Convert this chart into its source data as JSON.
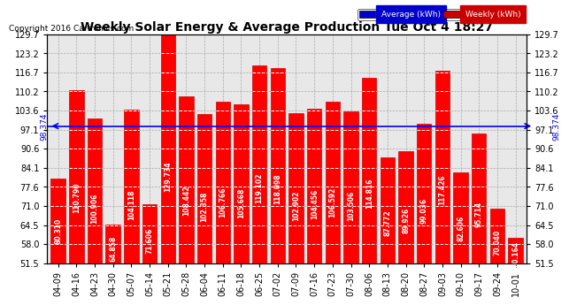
{
  "title": "Weekly Solar Energy & Average Production Tue Oct 4 18:27",
  "copyright": "Copyright 2016 Cartronics.com",
  "average_value": 98.374,
  "average_label": "98.374",
  "categories": [
    "04-09",
    "04-16",
    "04-23",
    "04-30",
    "05-07",
    "05-14",
    "05-21",
    "05-28",
    "06-04",
    "06-11",
    "06-18",
    "06-25",
    "07-02",
    "07-09",
    "07-16",
    "07-23",
    "07-30",
    "08-06",
    "08-13",
    "08-20",
    "08-27",
    "09-03",
    "09-10",
    "09-17",
    "09-24",
    "10-01"
  ],
  "values": [
    80.31,
    110.79,
    100.906,
    64.858,
    104.118,
    71.606,
    129.734,
    108.442,
    102.358,
    106.766,
    105.668,
    119.102,
    118.098,
    102.902,
    104.456,
    106.592,
    103.506,
    114.816,
    87.772,
    89.926,
    99.036,
    117.426,
    82.606,
    95.714,
    70.04,
    60.164
  ],
  "bar_color": "#ff0000",
  "bar_edge_color": "#cc0000",
  "average_line_color": "#0000ff",
  "bg_color": "#ffffff",
  "plot_bg_color": "#e8e8e8",
  "grid_color": "#aaaaaa",
  "ylim_min": 51.5,
  "ylim_max": 129.7,
  "yticks": [
    51.5,
    58.0,
    64.5,
    71.0,
    77.6,
    84.1,
    90.6,
    97.1,
    103.6,
    110.2,
    116.7,
    123.2,
    129.7
  ],
  "legend_avg_label": "Average (kWh)",
  "legend_weekly_label": "Weekly (kWh)",
  "legend_avg_bg": "#0000cc",
  "legend_weekly_bg": "#cc0000",
  "legend_avg_text": "#ffffff",
  "legend_weekly_text": "#ffffff",
  "value_fontsize": 5.5,
  "title_fontsize": 10,
  "tick_fontsize": 7,
  "copyright_fontsize": 6.5
}
